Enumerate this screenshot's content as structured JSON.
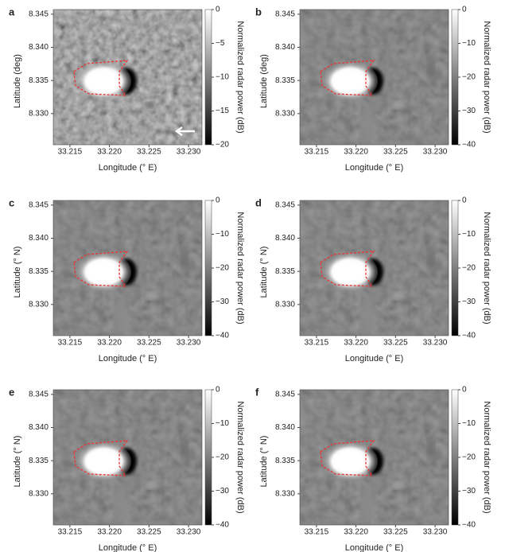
{
  "chart_data": [
    {
      "type": "image",
      "panel": "a",
      "xlabel": "Longitude (° E)",
      "ylabel": "Latitude (deg)",
      "colorbar_label": "Normalized radar power (dB)",
      "xlim": [
        33.2129,
        33.2317
      ],
      "ylim": [
        8.3253,
        8.3457
      ],
      "clim": [
        -20,
        0
      ],
      "xticks": [
        33.215,
        {
          "value": 33.22,
          "label": "33.220"
        },
        33.225,
        {
          "value": 33.23,
          "label": "33.230"
        }
      ],
      "yticks": [
        {
          "value": 8.33,
          "label": "8.330"
        },
        8.335,
        {
          "value": 8.34,
          "label": "8.340"
        },
        8.345
      ],
      "cticks": [
        0,
        {
          "value": -5,
          "label": "−5"
        },
        {
          "value": -10,
          "label": "−10"
        },
        {
          "value": -15,
          "label": "−15"
        },
        {
          "value": -20,
          "label": "−20"
        }
      ]
    },
    {
      "type": "image",
      "panel": "b",
      "xlabel": "Longitude (° E)",
      "ylabel": "Latitude (deg)",
      "colorbar_label": "Normalized radar power (dB)",
      "xlim": [
        33.2129,
        33.2317
      ],
      "ylim": [
        8.3253,
        8.3457
      ],
      "clim": [
        -40,
        0
      ],
      "xticks": [
        33.215,
        {
          "value": 33.22,
          "label": "33.220"
        },
        33.225,
        {
          "value": 33.23,
          "label": "33.230"
        }
      ],
      "yticks": [
        {
          "value": 8.33,
          "label": "8.330"
        },
        8.335,
        {
          "value": 8.34,
          "label": "8.340"
        },
        8.345
      ],
      "cticks": [
        0,
        {
          "value": -10,
          "label": "−10"
        },
        {
          "value": -20,
          "label": "−20"
        },
        {
          "value": -30,
          "label": "−30"
        },
        {
          "value": -40,
          "label": "−40"
        }
      ]
    },
    {
      "type": "image",
      "panel": "c",
      "xlabel": "Longitude (° E)",
      "ylabel": "Latitude (° N)",
      "colorbar_label": "Normalized radar power (dB)",
      "xlim": [
        33.2129,
        33.2317
      ],
      "ylim": [
        8.3253,
        8.3457
      ],
      "clim": [
        -40,
        0
      ],
      "xticks": [
        33.215,
        {
          "value": 33.22,
          "label": "33.220"
        },
        33.225,
        {
          "value": 33.23,
          "label": "33.230"
        }
      ],
      "yticks": [
        {
          "value": 8.33,
          "label": "8.330"
        },
        8.335,
        {
          "value": 8.34,
          "label": "8.340"
        },
        8.345
      ],
      "cticks": [
        0,
        {
          "value": -10,
          "label": "−10"
        },
        {
          "value": -20,
          "label": "−20"
        },
        {
          "value": -30,
          "label": "−30"
        },
        {
          "value": -40,
          "label": "−40"
        }
      ]
    },
    {
      "type": "image",
      "panel": "d",
      "xlabel": "Longitude (° E)",
      "ylabel": "Latitude (° N)",
      "colorbar_label": "Normalized radar power (dB)",
      "xlim": [
        33.2129,
        33.2317
      ],
      "ylim": [
        8.3253,
        8.3457
      ],
      "clim": [
        -40,
        0
      ],
      "xticks": [
        33.215,
        {
          "value": 33.22,
          "label": "33.220"
        },
        33.225,
        {
          "value": 33.23,
          "label": "33.230"
        }
      ],
      "yticks": [
        {
          "value": 8.33,
          "label": "8.330"
        },
        8.335,
        {
          "value": 8.34,
          "label": "8.340"
        },
        8.345
      ],
      "cticks": [
        0,
        {
          "value": -10,
          "label": "−10"
        },
        {
          "value": -20,
          "label": "−20"
        },
        {
          "value": -30,
          "label": "−30"
        },
        {
          "value": -40,
          "label": "−40"
        }
      ]
    },
    {
      "type": "image",
      "panel": "e",
      "xlabel": "Longitude (° E)",
      "ylabel": "Latitude (° N)",
      "colorbar_label": "Normalized radar power (dB)",
      "xlim": [
        33.2129,
        33.2317
      ],
      "ylim": [
        8.3253,
        8.3457
      ],
      "clim": [
        -40,
        0
      ],
      "xticks": [
        33.215,
        {
          "value": 33.22,
          "label": "33.220"
        },
        33.225,
        {
          "value": 33.23,
          "label": "33.230"
        }
      ],
      "yticks": [
        {
          "value": 8.33,
          "label": "8.330"
        },
        8.335,
        {
          "value": 8.34,
          "label": "8.340"
        },
        8.345
      ],
      "cticks": [
        0,
        {
          "value": -10,
          "label": "−10"
        },
        {
          "value": -20,
          "label": "−20"
        },
        {
          "value": -30,
          "label": "−30"
        },
        {
          "value": -40,
          "label": "−40"
        }
      ]
    },
    {
      "type": "image",
      "panel": "f",
      "xlabel": "Longitude (° E)",
      "ylabel": "Latitude (° N)",
      "colorbar_label": "Normalized radar power (dB)",
      "xlim": [
        33.2129,
        33.2317
      ],
      "ylim": [
        8.3253,
        8.3457
      ],
      "clim": [
        -40,
        0
      ],
      "xticks": [
        33.215,
        {
          "value": 33.22,
          "label": "33.220"
        },
        33.225,
        {
          "value": 33.23,
          "label": "33.230"
        }
      ],
      "yticks": [
        {
          "value": 8.33,
          "label": "8.330"
        },
        8.335,
        {
          "value": 8.34,
          "label": "8.340"
        },
        8.345
      ],
      "cticks": [
        0,
        {
          "value": -10,
          "label": "−10"
        },
        {
          "value": -20,
          "label": "−20"
        },
        {
          "value": -30,
          "label": "−30"
        },
        {
          "value": -40,
          "label": "−40"
        }
      ]
    }
  ]
}
